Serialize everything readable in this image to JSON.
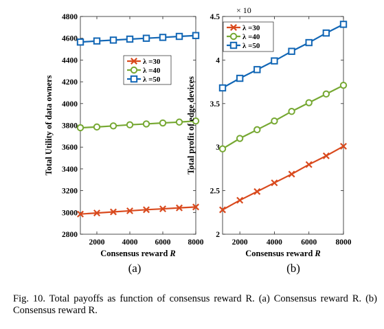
{
  "chart_data": [
    {
      "type": "line",
      "panel_label": "(a)",
      "xlabel": "Consensus reward",
      "xlabel_var": "R",
      "ylabel": "Total Utility of data owners",
      "xlim": [
        1000,
        8000
      ],
      "ylim": [
        2800,
        4800
      ],
      "xticks": [
        2000,
        4000,
        6000,
        8000
      ],
      "yticks": [
        2800,
        3000,
        3200,
        3400,
        3600,
        3800,
        4000,
        4200,
        4400,
        4600,
        4800
      ],
      "x": [
        1000,
        2000,
        3000,
        4000,
        5000,
        6000,
        7000,
        8000
      ],
      "legend_position": "upper-right, below top",
      "series": [
        {
          "name": "λ =30",
          "marker": "x",
          "color": "#d94a1e",
          "values": [
            2985,
            2995,
            3005,
            3015,
            3025,
            3033,
            3042,
            3050
          ]
        },
        {
          "name": "λ =40",
          "marker": "o",
          "color": "#76a832",
          "values": [
            3778,
            3785,
            3795,
            3805,
            3813,
            3822,
            3830,
            3840
          ]
        },
        {
          "name": "λ =50",
          "marker": "s",
          "color": "#1166b5",
          "values": [
            4565,
            4575,
            4583,
            4592,
            4600,
            4608,
            4617,
            4625
          ]
        }
      ]
    },
    {
      "type": "line",
      "panel_label": "(b)",
      "xlabel": "Consensus reward",
      "xlabel_var": "R",
      "ylabel": "Total profit of edge devices",
      "exponent_label": "× 10",
      "xlim": [
        1000,
        8000
      ],
      "ylim": [
        2,
        4.5
      ],
      "xticks": [
        2000,
        4000,
        6000,
        8000
      ],
      "yticks": [
        2,
        2.5,
        3,
        3.5,
        4,
        4.5
      ],
      "x": [
        1000,
        2000,
        3000,
        4000,
        5000,
        6000,
        7000,
        8000
      ],
      "legend_position": "top-left",
      "series": [
        {
          "name": "λ =30",
          "marker": "x",
          "color": "#d94a1e",
          "values": [
            2.28,
            2.39,
            2.49,
            2.59,
            2.69,
            2.8,
            2.9,
            3.01
          ]
        },
        {
          "name": "λ =40",
          "marker": "o",
          "color": "#76a832",
          "values": [
            2.98,
            3.1,
            3.2,
            3.3,
            3.41,
            3.51,
            3.61,
            3.71
          ]
        },
        {
          "name": "λ =50",
          "marker": "s",
          "color": "#1166b5",
          "values": [
            3.68,
            3.79,
            3.89,
            3.99,
            4.1,
            4.2,
            4.31,
            4.41
          ]
        }
      ]
    }
  ],
  "caption": {
    "text": "Fig. 10.   Total payoffs as function of consensus reward R. (a) Consensus reward R. (b) Consensus reward R."
  }
}
